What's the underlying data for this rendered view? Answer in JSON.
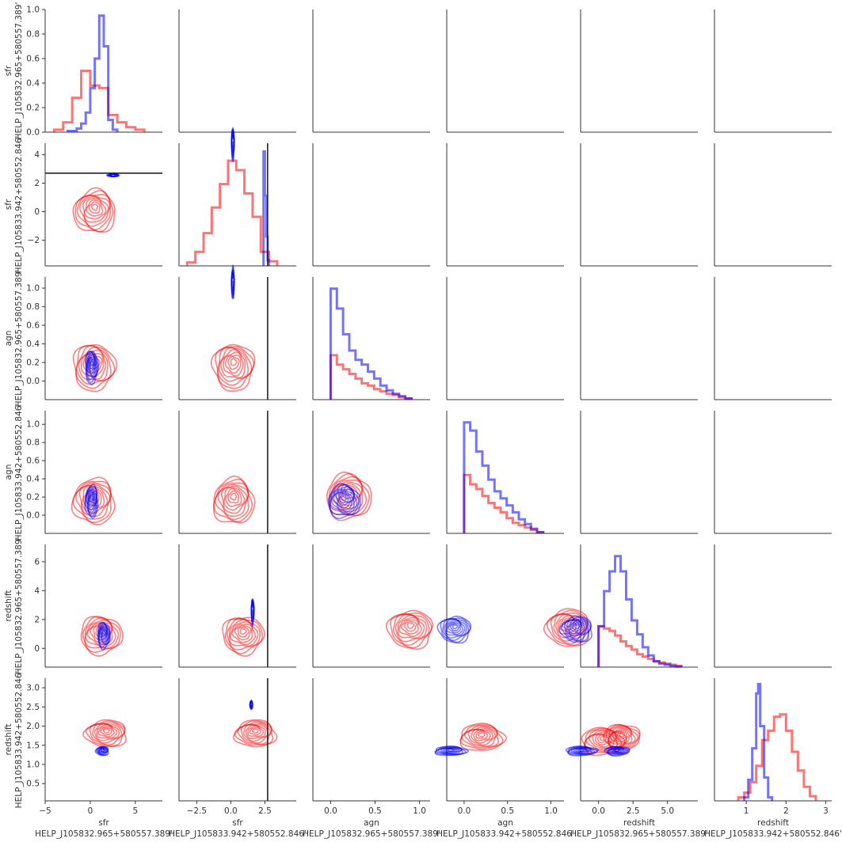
{
  "chart_data": {
    "type": "pairgrid",
    "variables": [
      {
        "name": "sfr",
        "source": "HELP_J105832.965+580557.389'",
        "range": [
          -5,
          8
        ],
        "ticks": [
          -5,
          0,
          5
        ],
        "tick_labels": [
          "−5",
          "0",
          "5"
        ]
      },
      {
        "name": "sfr",
        "source": "HELP_J105833.942+580552.846'",
        "range": [
          -3.8,
          4.8
        ],
        "ticks": [
          -2,
          0,
          2,
          4
        ],
        "tick_labels": [
          "−2",
          "0",
          "2",
          "4"
        ],
        "x_ticks": [
          -2.5,
          0,
          2.5
        ],
        "x_tick_labels": [
          "−2.5",
          "0.0",
          "2.5"
        ]
      },
      {
        "name": "agn",
        "source": "HELP_J105832.965+580557.389'",
        "range": [
          -0.2,
          1.12
        ],
        "ticks": [
          0.0,
          0.2,
          0.4,
          0.6,
          0.8,
          1.0
        ],
        "tick_labels": [
          "0.0",
          "0.2",
          "0.4",
          "0.6",
          "0.8",
          "1.0"
        ],
        "x_ticks": [
          0.0,
          0.5,
          1.0
        ],
        "x_tick_labels": [
          "0.0",
          "0.5",
          "1.0"
        ]
      },
      {
        "name": "agn",
        "source": "HELP_J105833.942+580552.846'",
        "range": [
          -0.2,
          1.15
        ],
        "ticks": [
          0.0,
          0.2,
          0.4,
          0.6,
          0.8,
          1.0
        ],
        "tick_labels": [
          "0.0",
          "0.2",
          "0.4",
          "0.6",
          "0.8",
          "1.0"
        ],
        "x_ticks": [
          0.0,
          0.5,
          1.0
        ],
        "x_tick_labels": [
          "0.0",
          "0.5",
          "1.0"
        ]
      },
      {
        "name": "redshift",
        "source": "HELP_J105832.965+580557.389'",
        "range": [
          -1.3,
          7.2
        ],
        "ticks": [
          0,
          2,
          4,
          6
        ],
        "tick_labels": [
          "0",
          "2",
          "4",
          "6"
        ],
        "x_ticks": [
          0.0,
          2.5,
          5.0
        ],
        "x_tick_labels": [
          "0.0",
          "2.5",
          "5.0"
        ]
      },
      {
        "name": "redshift",
        "source": "HELP_J105833.942+580552.846'",
        "range": [
          0.05,
          3.25
        ],
        "ticks": [
          0.5,
          1.0,
          1.5,
          2.0,
          2.5,
          3.0
        ],
        "tick_labels": [
          "0.5",
          "1.0",
          "1.5",
          "2.0",
          "2.5",
          "3.0"
        ],
        "x_range": [
          0.2,
          3.15
        ],
        "x_ticks": [
          1,
          2,
          3
        ],
        "x_tick_labels": [
          "1",
          "2",
          "3"
        ]
      }
    ],
    "series_colors": {
      "red": "#ff0000",
      "blue": "#0000ff"
    },
    "reference_line": {
      "variable_index": 1,
      "value": 2.7,
      "color": "#222222"
    },
    "diagonal": [
      {
        "ylim": [
          0,
          1.0
        ],
        "yticks": [
          0.0,
          0.2,
          0.4,
          0.6,
          0.8,
          1.0
        ],
        "ytick_labels": [
          "0.0",
          "0.2",
          "0.4",
          "0.6",
          "0.8",
          "1.0"
        ],
        "red": {
          "edges": [
            -4,
            -3,
            -2,
            -1,
            0,
            1,
            2,
            3,
            4,
            5,
            6
          ],
          "counts": [
            0.02,
            0.08,
            0.28,
            0.5,
            0.38,
            0.36,
            0.14,
            0.08,
            0.04,
            0.02
          ]
        },
        "blue": {
          "edges": [
            -2.5,
            -1.5,
            -1,
            -0.5,
            0,
            0.5,
            1,
            1.5,
            2,
            2.5,
            3
          ],
          "counts": [
            0.01,
            0.03,
            0.07,
            0.16,
            0.36,
            0.6,
            0.95,
            0.7,
            0.1,
            0.02
          ]
        }
      },
      {
        "red": {
          "edges": [
            -3.2,
            -2.6,
            -2.0,
            -1.4,
            -0.8,
            -0.2,
            0.4,
            1.0,
            1.6,
            2.2,
            2.8,
            3.4
          ],
          "counts": [
            0.03,
            0.12,
            0.28,
            0.5,
            0.7,
            0.9,
            0.82,
            0.62,
            0.42,
            0.12,
            0.04
          ]
        },
        "blue": {
          "edges": [
            2.4,
            2.5,
            2.6,
            2.7,
            2.8
          ],
          "counts": [
            0.98,
            0.6,
            0.25,
            0.05
          ]
        }
      },
      {
        "red": {
          "edges": [
            0,
            0.07,
            0.14,
            0.21,
            0.28,
            0.35,
            0.42,
            0.49,
            0.56,
            0.63,
            0.7,
            0.77,
            0.84,
            0.91
          ],
          "counts": [
            0.38,
            0.3,
            0.26,
            0.22,
            0.18,
            0.14,
            0.12,
            0.09,
            0.07,
            0.05,
            0.04,
            0.02,
            0.01
          ]
        },
        "blue": {
          "edges": [
            0,
            0.07,
            0.14,
            0.21,
            0.28,
            0.35,
            0.42,
            0.49,
            0.56,
            0.63,
            0.7,
            0.77,
            0.84,
            0.91
          ],
          "counts": [
            0.95,
            0.78,
            0.56,
            0.42,
            0.34,
            0.3,
            0.24,
            0.18,
            0.12,
            0.08,
            0.05,
            0.03,
            0.01
          ]
        }
      },
      {
        "red": {
          "edges": [
            0,
            0.07,
            0.14,
            0.21,
            0.28,
            0.35,
            0.42,
            0.49,
            0.56,
            0.63,
            0.7,
            0.77,
            0.84,
            0.91
          ],
          "counts": [
            0.5,
            0.42,
            0.38,
            0.32,
            0.26,
            0.22,
            0.18,
            0.13,
            0.09,
            0.07,
            0.05,
            0.03,
            0.01
          ]
        },
        "blue": {
          "edges": [
            0,
            0.07,
            0.14,
            0.21,
            0.28,
            0.35,
            0.42,
            0.49,
            0.56,
            0.63,
            0.7,
            0.77,
            0.84,
            0.91
          ],
          "counts": [
            0.95,
            0.88,
            0.7,
            0.58,
            0.46,
            0.36,
            0.3,
            0.24,
            0.18,
            0.12,
            0.08,
            0.04,
            0.01
          ]
        }
      },
      {
        "red": {
          "edges": [
            0,
            0.4,
            0.8,
            1.2,
            1.6,
            2.0,
            2.4,
            2.8,
            3.2,
            3.6,
            4.0,
            4.4,
            4.8,
            5.2,
            5.6,
            6.0
          ],
          "counts": [
            0.35,
            0.33,
            0.31,
            0.27,
            0.22,
            0.18,
            0.15,
            0.11,
            0.09,
            0.07,
            0.05,
            0.04,
            0.03,
            0.02,
            0.01
          ]
        },
        "blue": {
          "edges": [
            0,
            0.4,
            0.8,
            1.2,
            1.6,
            2.0,
            2.4,
            2.8,
            3.2,
            3.6,
            4.0,
            4.4,
            4.8,
            5.2,
            5.6,
            6.0
          ],
          "counts": [
            0.35,
            0.65,
            0.82,
            0.95,
            0.82,
            0.58,
            0.4,
            0.28,
            0.17,
            0.1,
            0.05,
            0.03,
            0.02,
            0.01,
            0.005
          ]
        }
      },
      {
        "red": {
          "edges": [
            0.8,
            0.95,
            1.1,
            1.25,
            1.4,
            1.55,
            1.7,
            1.85,
            2.0,
            2.15,
            2.3,
            2.45,
            2.6,
            2.75
          ],
          "counts": [
            0.03,
            0.07,
            0.16,
            0.3,
            0.52,
            0.6,
            0.72,
            0.74,
            0.6,
            0.42,
            0.26,
            0.12,
            0.04
          ]
        },
        "blue": {
          "edges": [
            0.95,
            1.05,
            1.15,
            1.25,
            1.3,
            1.35,
            1.45,
            1.55,
            1.65
          ],
          "counts": [
            0.03,
            0.18,
            0.45,
            0.92,
            1.0,
            0.64,
            0.2,
            0.03
          ]
        }
      }
    ],
    "density_centers": {
      "red": [
        [
          0.0,
          0.0,
          0.15,
          0.15,
          0.9,
          1.8
        ],
        [
          0.5,
          0.3,
          0.15,
          0.15,
          0.9,
          1.8
        ],
        [
          0.4,
          0.2,
          0.2,
          0.2,
          1.3,
          1.7
        ],
        [
          0.4,
          0.2,
          0.2,
          0.2,
          1.4,
          1.6
        ],
        [
          1.2,
          0.9,
          0.9,
          1.2,
          1.6,
          1.7
        ],
        [
          1.8,
          1.8,
          1.7,
          1.6,
          1.7,
          1.8
        ]
      ],
      "blue": [
        [
          1.7,
          2.55,
          0.15,
          0.15,
          0.9,
          1.35
        ],
        [
          2.55,
          2.55,
          2.55,
          2.55,
          2.55,
          2.55
        ],
        [
          0.15,
          0.15,
          0.15,
          0.15,
          1.3,
          1.35
        ],
        [
          0.15,
          0.15,
          0.15,
          0.15,
          1.3,
          1.35
        ],
        [
          1.5,
          1.6,
          1.4,
          1.3,
          1.4,
          1.35
        ],
        [
          1.35,
          1.5,
          1.35,
          1.35,
          1.35,
          1.35
        ]
      ]
    }
  }
}
